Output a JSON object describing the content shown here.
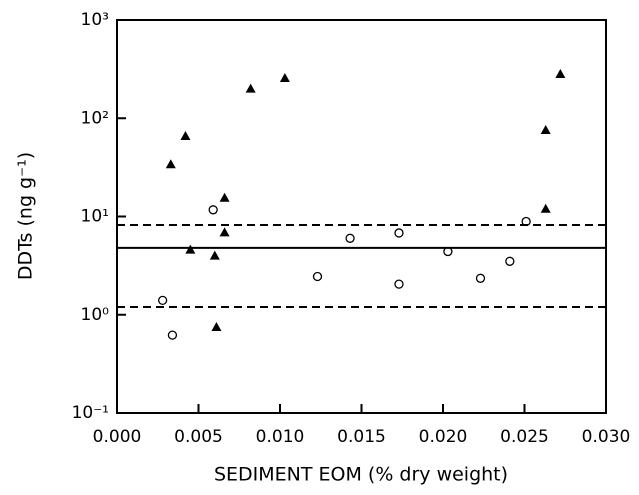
{
  "chart_data": {
    "type": "scatter",
    "x_label": "SEDIMENT EOM (% dry weight)",
    "y_label": "DDTs (ng g⁻¹)",
    "y_scale": "log",
    "xlim": [
      0,
      0.03
    ],
    "ylim": [
      0.1,
      1000
    ],
    "xticks": [
      {
        "value": 0,
        "label": "0.000"
      },
      {
        "value": 0.005,
        "label": "0.005"
      },
      {
        "value": 0.01,
        "label": "0.010"
      },
      {
        "value": 0.015,
        "label": "0.015"
      },
      {
        "value": 0.02,
        "label": "0.020"
      },
      {
        "value": 0.025,
        "label": "0.025"
      },
      {
        "value": 0.03,
        "label": "0.030"
      }
    ],
    "yticks": [
      {
        "value": 0.1,
        "label": "10⁻¹"
      },
      {
        "value": 1,
        "label": "10⁰"
      },
      {
        "value": 10,
        "label": "10¹"
      },
      {
        "value": 100,
        "label": "10²"
      },
      {
        "value": 1000,
        "label": "10³"
      }
    ],
    "reference_lines": [
      {
        "value": 8.2,
        "style": "dashed"
      },
      {
        "value": 4.8,
        "style": "solid"
      },
      {
        "value": 1.2,
        "style": "dashed"
      }
    ],
    "series": [
      {
        "marker": "triangle",
        "color": "#000000",
        "x": [
          0.0033,
          0.0042,
          0.0045,
          0.006,
          0.0061,
          0.0066,
          0.0066,
          0.0082,
          0.0103,
          0.0263,
          0.0263,
          0.0272
        ],
        "values": [
          34,
          66,
          4.6,
          4.0,
          0.75,
          15.5,
          6.9,
          200,
          257,
          76,
          12,
          282
        ]
      },
      {
        "marker": "circle",
        "color": "#000000",
        "x": [
          0.0028,
          0.0034,
          0.0059,
          0.0123,
          0.0143,
          0.0173,
          0.0173,
          0.0203,
          0.0223,
          0.0241,
          0.0251
        ],
        "values": [
          1.4,
          0.62,
          11.7,
          2.45,
          6.0,
          2.05,
          6.8,
          4.4,
          2.35,
          3.5,
          8.9
        ]
      }
    ]
  }
}
